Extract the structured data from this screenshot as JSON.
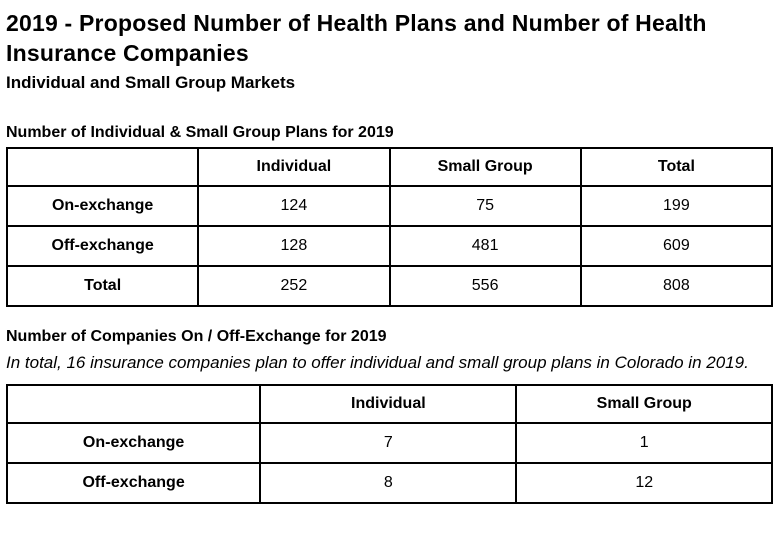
{
  "page": {
    "title": "2019 - Proposed Number of Health Plans and Number of Health Insurance Companies",
    "subtitle": "Individual and Small Group Markets"
  },
  "plans_section": {
    "heading": "Number of Individual & Small Group Plans for 2019",
    "table": {
      "columns": [
        "",
        "Individual",
        "Small Group",
        "Total"
      ],
      "rows": [
        {
          "label": "On-exchange",
          "values": [
            "124",
            "75",
            "199"
          ]
        },
        {
          "label": "Off-exchange",
          "values": [
            "128",
            "481",
            "609"
          ]
        },
        {
          "label": "Total",
          "values": [
            "252",
            "556",
            "808"
          ]
        }
      ]
    }
  },
  "companies_section": {
    "heading": "Number of Companies On / Off-Exchange for 2019",
    "note": "In total, 16 insurance companies plan to offer individual and small group plans in Colorado in 2019.",
    "table": {
      "columns": [
        "",
        "Individual",
        "Small Group"
      ],
      "rows": [
        {
          "label": "On-exchange",
          "values": [
            "7",
            "1"
          ]
        },
        {
          "label": "Off-exchange",
          "values": [
            "8",
            "12"
          ]
        }
      ]
    }
  },
  "colors": {
    "text": "#000000",
    "background": "#ffffff",
    "table_border": "#000000"
  },
  "chart_data": [
    {
      "type": "table",
      "title": "Number of Individual & Small Group Plans for 2019",
      "columns": [
        "",
        "Individual",
        "Small Group",
        "Total"
      ],
      "rows": [
        [
          "On-exchange",
          124,
          75,
          199
        ],
        [
          "Off-exchange",
          128,
          481,
          609
        ],
        [
          "Total",
          252,
          556,
          808
        ]
      ]
    },
    {
      "type": "table",
      "title": "Number of Companies On / Off-Exchange for 2019",
      "columns": [
        "",
        "Individual",
        "Small Group"
      ],
      "rows": [
        [
          "On-exchange",
          7,
          1
        ],
        [
          "Off-exchange",
          8,
          12
        ]
      ]
    }
  ]
}
